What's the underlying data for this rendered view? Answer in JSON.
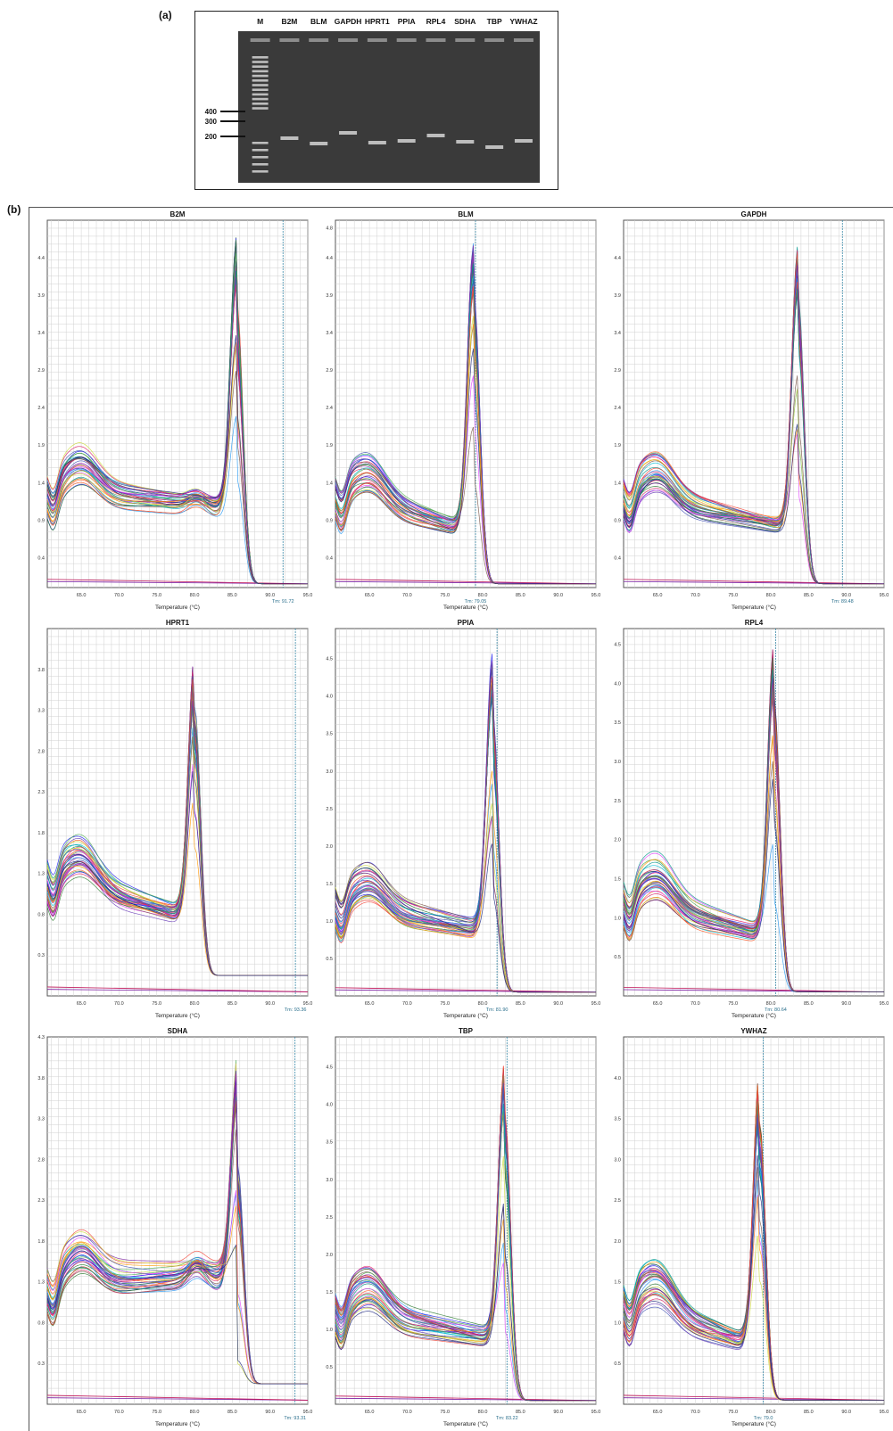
{
  "panel_a_label": "(a)",
  "panel_b_label": "(b)",
  "gel": {
    "lane_labels": [
      "M",
      "B2M",
      "BLM",
      "GAPDH",
      "HPRT1",
      "PPIA",
      "RPL4",
      "SDHA",
      "TBP",
      "YWHAZ"
    ],
    "ladder_labels": [
      "400",
      "300",
      "200"
    ]
  },
  "chart_data": [
    {
      "type": "line",
      "title": "B2M",
      "xlabel": "Temperature (°C)",
      "tm_label": "Tm: 91.72",
      "xticks": [
        "65.0",
        "70.0",
        "75.0",
        "80.0",
        "85.0",
        "90.0",
        "95.0"
      ],
      "yticks": [
        "0.4",
        "0.9",
        "1.4",
        "1.9",
        "2.4",
        "2.9",
        "3.4",
        "3.9",
        "4.4"
      ],
      "xlim": [
        60.5,
        95.0
      ],
      "ylim": [
        0,
        4.9
      ],
      "peak_temp": 85.6,
      "peak_height": 4.7,
      "tm_line": 91.72,
      "shoulder": 1.3,
      "baseline_end": 1.05,
      "grid": true
    },
    {
      "type": "line",
      "title": "BLM",
      "xlabel": "Temperature (°C)",
      "tm_label": "Tm: 79.05",
      "xticks": [
        "65.0",
        "70.0",
        "75.0",
        "80.0",
        "85.0",
        "90.0",
        "95.0"
      ],
      "yticks": [
        "0.4",
        "0.9",
        "1.4",
        "1.9",
        "2.4",
        "2.9",
        "3.4",
        "3.9",
        "4.4",
        "4.8"
      ],
      "xlim": [
        60.5,
        95.0
      ],
      "ylim": [
        0,
        4.9
      ],
      "peak_temp": 78.8,
      "peak_height": 4.6,
      "tm_line": 79.05,
      "shoulder": 0,
      "baseline_end": 0.75,
      "grid": true
    },
    {
      "type": "line",
      "title": "GAPDH",
      "xlabel": "Temperature (°C)",
      "tm_label": "Tm: 89.48",
      "xticks": [
        "65.0",
        "70.0",
        "75.0",
        "80.0",
        "85.0",
        "90.0",
        "95.0"
      ],
      "yticks": [
        "0.4",
        "0.9",
        "1.4",
        "1.9",
        "2.4",
        "2.9",
        "3.4",
        "3.9",
        "4.4"
      ],
      "xlim": [
        60.5,
        95.0
      ],
      "ylim": [
        0,
        4.9
      ],
      "peak_temp": 83.6,
      "peak_height": 4.6,
      "tm_line": 89.48,
      "shoulder": 0,
      "baseline_end": 0.8,
      "grid": true
    },
    {
      "type": "line",
      "title": "HPRT1",
      "xlabel": "Temperature (°C)",
      "tm_label": "Tm: 93.36",
      "xticks": [
        "65.0",
        "70.0",
        "75.0",
        "80.0",
        "85.0",
        "90.0",
        "95.0"
      ],
      "yticks": [
        "0.3",
        "0.8",
        "1.3",
        "1.8",
        "2.3",
        "2.8",
        "3.3",
        "3.8"
      ],
      "xlim": [
        60.5,
        95.0
      ],
      "ylim": [
        -0.2,
        4.3
      ],
      "peak_temp": 80.0,
      "peak_height": 4.0,
      "tm_line": 93.36,
      "shoulder": 0,
      "baseline_end": 0.75,
      "grid": true
    },
    {
      "type": "line",
      "title": "PPIA",
      "xlabel": "Temperature (°C)",
      "tm_label": "Tm: 81.90",
      "xticks": [
        "65.0",
        "70.0",
        "75.0",
        "80.0",
        "85.0",
        "90.0",
        "95.0"
      ],
      "yticks": [
        "0.5",
        "1.0",
        "1.5",
        "2.0",
        "2.5",
        "3.0",
        "3.5",
        "4.0",
        "4.5"
      ],
      "xlim": [
        60.5,
        95.0
      ],
      "ylim": [
        0,
        4.9
      ],
      "peak_temp": 81.3,
      "peak_height": 4.6,
      "tm_line": 81.9,
      "shoulder": 0,
      "baseline_end": 0.85,
      "grid": true
    },
    {
      "type": "line",
      "title": "RPL4",
      "xlabel": "Temperature (°C)",
      "tm_label": "Tm: 80.64",
      "xticks": [
        "65.0",
        "70.0",
        "75.0",
        "80.0",
        "85.0",
        "90.0",
        "95.0"
      ],
      "yticks": [
        "0.5",
        "1.0",
        "1.5",
        "2.0",
        "2.5",
        "3.0",
        "3.5",
        "4.0",
        "4.5"
      ],
      "xlim": [
        60.5,
        95.0
      ],
      "ylim": [
        0,
        4.7
      ],
      "peak_temp": 80.4,
      "peak_height": 4.5,
      "tm_line": 80.64,
      "shoulder": 0,
      "baseline_end": 0.75,
      "grid": true
    },
    {
      "type": "line",
      "title": "SDHA",
      "xlabel": "Temperature (°C)",
      "tm_label": "Tm: 93.31",
      "xticks": [
        "65.0",
        "70.0",
        "75.0",
        "80.0",
        "85.0",
        "90.0",
        "95.0"
      ],
      "yticks": [
        "0.3",
        "0.8",
        "1.3",
        "1.8",
        "2.3",
        "2.8",
        "3.3",
        "3.8",
        "4.3"
      ],
      "xlim": [
        60.5,
        95.0
      ],
      "ylim": [
        -0.2,
        4.3
      ],
      "peak_temp": 85.7,
      "peak_height": 4.1,
      "tm_line": 93.31,
      "shoulder": 1.75,
      "baseline_end": 1.35,
      "grid": true
    },
    {
      "type": "line",
      "title": "TBP",
      "xlabel": "Temperature (°C)",
      "tm_label": "Tm: 83.22",
      "xticks": [
        "65.0",
        "70.0",
        "75.0",
        "80.0",
        "85.0",
        "90.0",
        "95.0"
      ],
      "yticks": [
        "0.5",
        "1.0",
        "1.5",
        "2.0",
        "2.5",
        "3.0",
        "3.5",
        "4.0",
        "4.5"
      ],
      "xlim": [
        60.5,
        95.0
      ],
      "ylim": [
        0,
        4.9
      ],
      "peak_temp": 82.9,
      "peak_height": 4.6,
      "tm_line": 83.22,
      "shoulder": 0,
      "baseline_end": 0.85,
      "grid": true
    },
    {
      "type": "line",
      "title": "YWHAZ",
      "xlabel": "Temperature (°C)",
      "tm_label": "Tm: 79.0",
      "xticks": [
        "65.0",
        "70.0",
        "75.0",
        "80.0",
        "85.0",
        "90.0",
        "95.0"
      ],
      "yticks": [
        "0.5",
        "1.0",
        "1.5",
        "2.0",
        "2.5",
        "3.0",
        "3.5",
        "4.0"
      ],
      "xlim": [
        60.5,
        95.0
      ],
      "ylim": [
        0,
        4.5
      ],
      "peak_temp": 78.5,
      "peak_height": 4.1,
      "tm_line": 79.0,
      "shoulder": 0,
      "baseline_end": 0.7,
      "grid": true
    }
  ],
  "trace_colors": [
    "#1e1ef0",
    "#7b1fa2",
    "#e91e63",
    "#2e7d32",
    "#00bcd4",
    "#ff5722",
    "#3f51b5",
    "#9c27b0",
    "#4caf50",
    "#009688",
    "#f44336",
    "#673ab7",
    "#2196f3",
    "#e040fb",
    "#cddc39",
    "#ff9800",
    "#795548",
    "#1a237e",
    "#d81b60",
    "#43a047"
  ],
  "gel_colors": {
    "background": "#3a3a3a",
    "band": "#bdbdbd",
    "well": "#cfcfcf"
  }
}
